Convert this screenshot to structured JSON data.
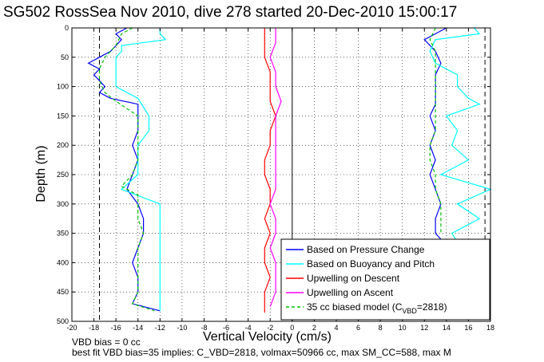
{
  "chart_data": {
    "type": "line",
    "title": "SG502 RossSea Nov 2010, dive 278 started 20-Dec-2010 15:00:17",
    "xlabel": "Vertical Velocity (cm/s)",
    "ylabel": "Depth (m)",
    "xlim": [
      -20,
      18
    ],
    "ylim": [
      500,
      0
    ],
    "y_reversed": true,
    "grid": true,
    "x_ticks": [
      "-20",
      "-18",
      "-16",
      "-14",
      "-12",
      "-10",
      "-8",
      "-6",
      "-4",
      "-2",
      "0",
      "2",
      "4",
      "6",
      "8",
      "10",
      "12",
      "14",
      "16",
      "18"
    ],
    "y_ticks": [
      "0",
      "50",
      "100",
      "150",
      "200",
      "250",
      "300",
      "350",
      "400",
      "450",
      "500"
    ],
    "vertical_dashed_lines_x": [
      -17.5,
      17.5
    ],
    "vertical_solid_line_x": 0,
    "legend_position": "bottom-right",
    "notes": [
      "VBD bias = 0 cc",
      "best fit VBD bias=35 implies: C_VBD=2818, volmax=50966 cc, max SM_CC=588, max M"
    ],
    "series": [
      {
        "name": "Based on Pressure Change",
        "color": "#0000ff",
        "segments": [
          {
            "depth": [
              0,
              10,
              20,
              30,
              40,
              50,
              60,
              70,
              80,
              90,
              100,
              110,
              120,
              130,
              150,
              175,
              200,
              225,
              250,
              275,
              300,
              325,
              350,
              375,
              400,
              425,
              450,
              470,
              482
            ],
            "velocity": [
              -15,
              -16,
              -15.5,
              -16,
              -16.5,
              -17.5,
              -18.5,
              -17.5,
              -18,
              -17.5,
              -17,
              -17.5,
              -16.5,
              -14,
              -14,
              -14,
              -14.5,
              -14,
              -14.5,
              -15,
              -14,
              -13.5,
              -13.5,
              -14,
              -14.5,
              -14,
              -14,
              -14.5,
              -12
            ]
          },
          {
            "depth": [
              0,
              10,
              20,
              40,
              60,
              80,
              100,
              130,
              150,
              175,
              200,
              225,
              250,
              275,
              300,
              325,
              350,
              360
            ],
            "velocity": [
              14,
              13,
              12,
              13,
              13.5,
              13,
              13,
              13,
              12.5,
              13,
              12.5,
              13,
              12.5,
              13,
              13.5,
              13,
              13,
              13.5
            ]
          }
        ]
      },
      {
        "name": "Based on Buoyancy and Pitch",
        "color": "#00ffff",
        "segments": [
          {
            "depth": [
              0,
              10,
              20,
              30,
              40,
              50,
              60,
              80,
              100,
              120,
              150,
              175,
              200,
              225,
              250,
              275,
              300,
              325,
              350,
              375,
              400,
              425,
              450,
              470,
              482
            ],
            "velocity": [
              -12,
              -12,
              -11.5,
              -15.5,
              -15.5,
              -16,
              -16,
              -16,
              -16,
              -14,
              -13,
              -13,
              -14,
              -14,
              -14,
              -15.5,
              -12,
              -12,
              -12,
              -12,
              -12,
              -12,
              -12,
              -12,
              -12
            ]
          },
          {
            "depth": [
              0,
              10,
              20,
              40,
              60,
              80,
              100,
              120,
              130,
              150,
              175,
              200,
              225,
              250,
              275,
              300,
              325,
              350,
              365
            ],
            "velocity": [
              16.5,
              17,
              13,
              12.5,
              13,
              15,
              15,
              16,
              17,
              14,
              15,
              14.5,
              16,
              13.5,
              18,
              15,
              17,
              14.5,
              15
            ]
          }
        ]
      },
      {
        "name": "Upwelling on Descent",
        "color": "#ff0000",
        "depth": [
          0,
          25,
          50,
          75,
          100,
          125,
          150,
          175,
          200,
          225,
          250,
          275,
          300,
          325,
          350,
          375,
          400,
          425,
          450,
          475,
          485
        ],
        "velocity": [
          -2.5,
          -2.5,
          -2.5,
          -2,
          -2,
          -2,
          -1.5,
          -2,
          -2,
          -2.5,
          -2.5,
          -2,
          -2,
          -2.5,
          -2,
          -2.5,
          -2.5,
          -2,
          -2.5,
          -2.5,
          -2.5
        ]
      },
      {
        "name": "Upwelling on Ascent",
        "color": "#ff00ff",
        "depth": [
          0,
          25,
          50,
          75,
          100,
          125,
          150,
          175,
          200,
          225,
          250,
          275,
          300,
          325,
          350,
          375,
          400,
          425,
          450,
          475
        ],
        "velocity": [
          -1.5,
          -1.5,
          -2,
          -1.5,
          -1.5,
          -1,
          -1.5,
          -1.5,
          -1.5,
          -1.5,
          -1.5,
          -1.5,
          -2,
          -1.5,
          -1.5,
          -2,
          -1.5,
          -1.5,
          -1.5,
          -2
        ]
      },
      {
        "name": "35 cc biased model (C_VBD=2818)",
        "legend_main": "35 cc biased model (C",
        "legend_sub": "VBD",
        "legend_tail": "=2818)",
        "color": "#00c000",
        "dashed": true,
        "segments": [
          {
            "depth": [
              0,
              10,
              30,
              50,
              70,
              90,
              110,
              125,
              150,
              175,
              200,
              225,
              250,
              270,
              285,
              300,
              325,
              350,
              375,
              400,
              425,
              450,
              470,
              482
            ],
            "velocity": [
              -14.5,
              -15.5,
              -16,
              -17,
              -17.5,
              -17.5,
              -17,
              -16,
              -14,
              -14,
              -14,
              -14,
              -14.5,
              -15.5,
              -14,
              -14,
              -14,
              -13.5,
              -14,
              -14,
              -14,
              -14,
              -14.5,
              -12.5
            ]
          },
          {
            "depth": [
              0,
              20,
              40,
              60,
              80,
              100,
              130,
              150,
              175,
              200,
              225,
              250,
              275,
              300,
              325,
              350
            ],
            "velocity": [
              13,
              12.5,
              13,
              13,
              13,
              13,
              13,
              13,
              13,
              12.5,
              12.5,
              13,
              13,
              13.5,
              13.5,
              13.5
            ]
          }
        ]
      }
    ]
  }
}
